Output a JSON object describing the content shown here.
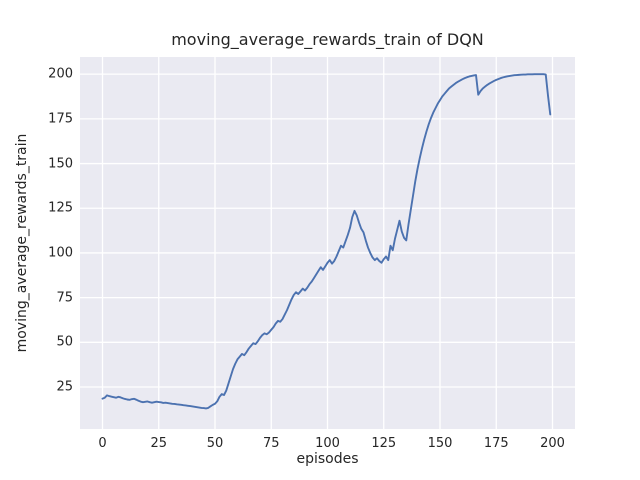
{
  "chart": {
    "title": "moving_average_rewards_train of DQN",
    "xlabel": "episodes",
    "ylabel": "moving_average_rewards_train"
  },
  "style": {
    "figure_background": "#ffffff",
    "axes_background": "#eaeaf2",
    "grid_color": "#ffffff",
    "line_color": "#4c72b0",
    "text_color": "#262626"
  },
  "chart_data": {
    "type": "line",
    "title": "moving_average_rewards_train of DQN",
    "xlabel": "episodes",
    "ylabel": "moving_average_rewards_train",
    "x_tick_labels": [
      0,
      25,
      50,
      75,
      100,
      125,
      150,
      175,
      200
    ],
    "y_tick_labels": [
      25,
      50,
      75,
      100,
      125,
      150,
      175,
      200
    ],
    "xlim": [
      -10,
      210
    ],
    "ylim": [
      1.5,
      209.6
    ],
    "grid": "on",
    "legend_position": "none",
    "series": [
      {
        "name": "moving_average_rewards_train",
        "x_start": 0,
        "x_step": 1,
        "values": [
          18.5,
          19.0,
          20.3,
          19.9,
          19.6,
          19.3,
          19.0,
          19.5,
          19.2,
          18.7,
          18.3,
          18.0,
          17.8,
          18.2,
          18.4,
          17.9,
          17.3,
          16.8,
          16.5,
          16.7,
          16.9,
          16.5,
          16.2,
          16.5,
          16.8,
          16.6,
          16.4,
          16.1,
          16.2,
          16.0,
          15.8,
          15.6,
          15.5,
          15.3,
          15.2,
          15.0,
          14.8,
          14.7,
          14.5,
          14.3,
          14.1,
          13.9,
          13.7,
          13.5,
          13.3,
          13.2,
          13.0,
          13.3,
          14.2,
          15.0,
          15.6,
          17.0,
          19.5,
          21.0,
          20.5,
          23.0,
          27.0,
          31.0,
          35.0,
          38.0,
          40.5,
          42.0,
          43.5,
          42.8,
          44.5,
          46.5,
          48.0,
          49.5,
          49.0,
          50.5,
          52.5,
          54.0,
          55.0,
          54.5,
          55.5,
          57.0,
          58.5,
          60.5,
          62.0,
          61.5,
          63.0,
          65.5,
          68.0,
          71.0,
          74.0,
          76.5,
          78.0,
          77.0,
          78.5,
          80.0,
          79.0,
          80.5,
          82.5,
          84.0,
          86.0,
          88.0,
          90.0,
          92.0,
          90.5,
          92.5,
          94.5,
          96.0,
          94.0,
          95.5,
          98.0,
          101.0,
          104.0,
          103.0,
          106.5,
          110.0,
          114.0,
          120.0,
          123.5,
          121.0,
          117.0,
          113.5,
          111.5,
          107.0,
          103.0,
          100.0,
          97.5,
          96.0,
          97.0,
          95.5,
          94.5,
          96.5,
          98.0,
          96.0,
          104.0,
          101.5,
          108.0,
          113.0,
          118.0,
          112.0,
          108.5,
          107.0,
          116.0,
          124.0,
          132.0,
          140.0,
          147.0,
          153.0,
          158.5,
          163.5,
          168.0,
          172.0,
          175.5,
          178.5,
          181.0,
          183.5,
          185.5,
          187.5,
          189.0,
          190.5,
          192.0,
          193.0,
          194.0,
          195.0,
          195.8,
          196.5,
          197.2,
          197.8,
          198.3,
          198.7,
          199.0,
          199.3,
          199.5,
          188.5,
          190.5,
          192.0,
          193.0,
          194.0,
          194.8,
          195.5,
          196.2,
          196.8,
          197.3,
          197.8,
          198.2,
          198.5,
          198.8,
          199.0,
          199.2,
          199.4,
          199.5,
          199.6,
          199.7,
          199.8,
          199.8,
          199.9,
          199.9,
          199.9,
          200.0,
          200.0,
          200.0,
          200.0,
          200.0,
          199.8,
          188.0,
          177.5
        ]
      }
    ]
  }
}
